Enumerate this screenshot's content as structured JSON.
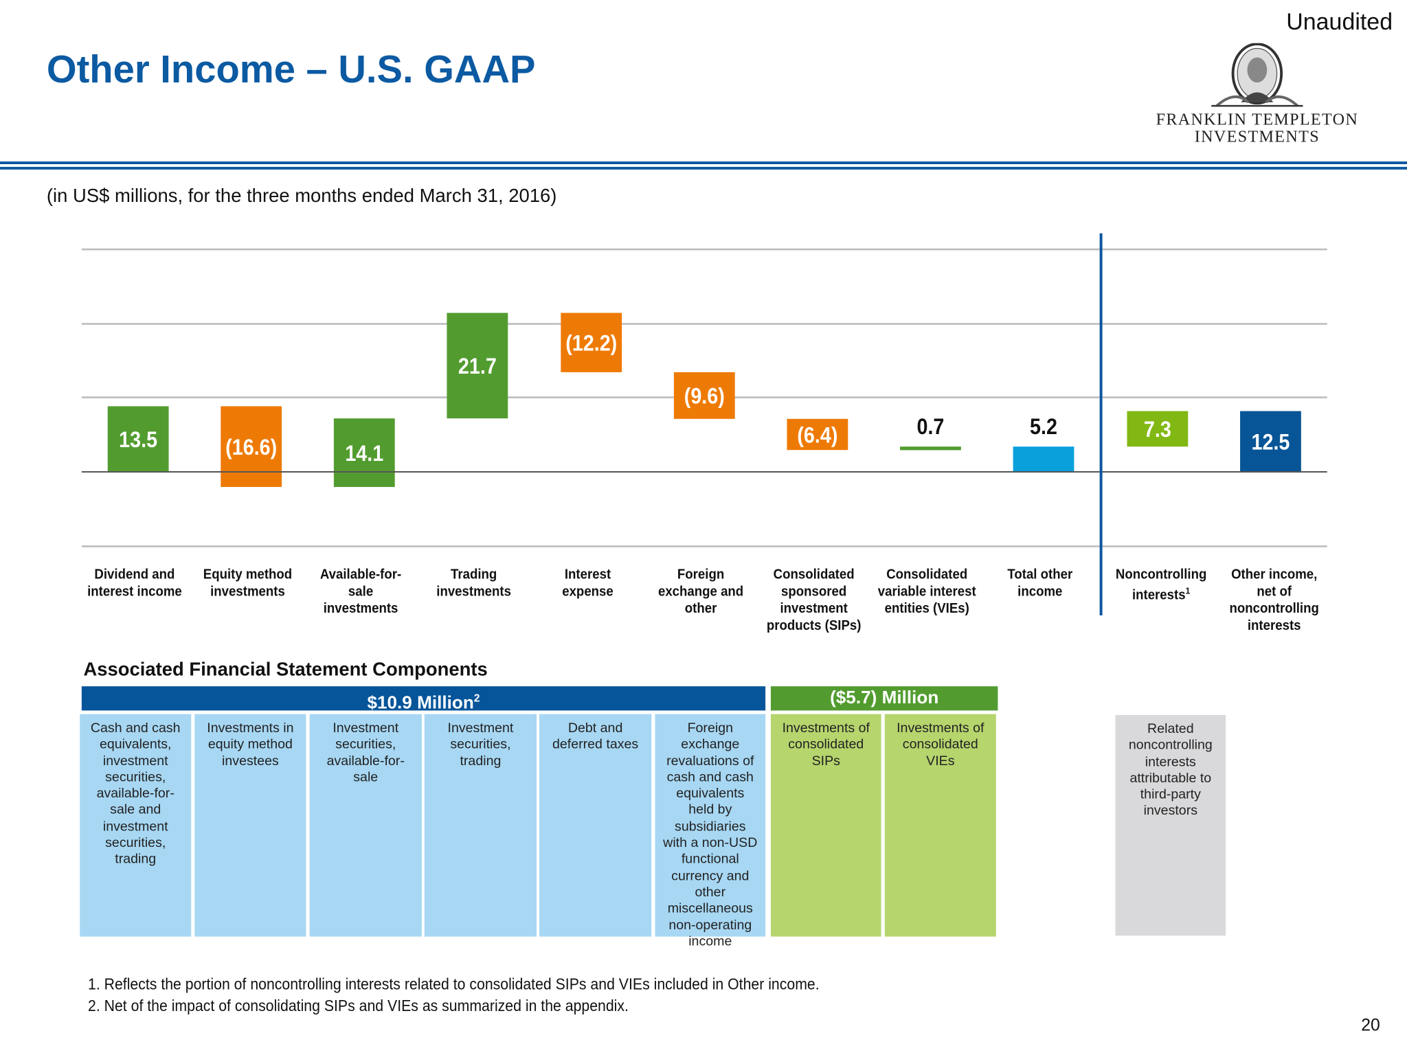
{
  "header": {
    "title": "Other Income – U.S. GAAP",
    "status": "Unaudited",
    "logo_text_line1": "FRANKLIN TEMPLETON",
    "logo_text_line2": "INVESTMENTS"
  },
  "subtitle": "(in US$ millions, for the three months ended March 31, 2016)",
  "chart_data": {
    "type": "waterfall",
    "categories": [
      "Dividend and interest income",
      "Equity method investments",
      "Available-for-sale investments",
      "Trading investments",
      "Interest expense",
      "Foreign exchange and other",
      "Consolidated sponsored investment products (SIPs)",
      "Consolidated variable interest entities (VIEs)",
      "Total other income",
      "Noncontrolling interests",
      "Other income, net of noncontrolling interests"
    ],
    "values": [
      13.5,
      -16.6,
      14.1,
      21.7,
      -12.2,
      -9.6,
      -6.4,
      0.7,
      5.2,
      7.3,
      12.5
    ],
    "data_labels": [
      "13.5",
      "(16.6)",
      "14.1",
      "21.7",
      "(12.2)",
      "(9.6)",
      "(6.4)",
      "0.7",
      "5.2",
      "7.3",
      "12.5"
    ],
    "kinds": [
      "delta",
      "delta",
      "delta",
      "delta",
      "delta",
      "delta",
      "delta",
      "delta",
      "total",
      "delta",
      "total"
    ],
    "colors": {
      "positive": "#529c2f",
      "negative": "#ee7a06",
      "total": "#0aa0dc",
      "noncontrolling": "#82b813",
      "net_total": "#075596"
    },
    "grid": true
  },
  "category_labels": [
    [
      "Dividend and",
      "interest income"
    ],
    [
      "Equity method",
      "investments"
    ],
    [
      "Available-for-",
      "sale",
      "investments"
    ],
    [
      "Trading",
      "investments"
    ],
    [
      "Interest",
      "expense"
    ],
    [
      "Foreign",
      "exchange and",
      "other"
    ],
    [
      "Consolidated",
      "sponsored",
      "investment",
      "products (SIPs)"
    ],
    [
      "Consolidated",
      "variable interest",
      "entities (VIEs)"
    ],
    [
      "Total other",
      "income"
    ],
    [
      "Noncontrolling",
      "interests"
    ],
    [
      "Other income,",
      "net of",
      "noncontrolling",
      "interests"
    ]
  ],
  "noncontrolling_sup": "1",
  "components": {
    "title": "Associated Financial Statement Components",
    "group1": {
      "label": "$10.9 Million",
      "sup": "2"
    },
    "group2": {
      "label": "($5.7) Million"
    },
    "cells": [
      "Cash and cash equivalents, investment securities, available-for-sale and investment securities, trading",
      "Investments in equity method investees",
      "Investment securities, available-for-sale",
      "Investment securities, trading",
      "Debt and deferred taxes",
      "Foreign exchange revaluations of cash and cash equivalents held by subsidiaries with a non-USD functional currency and other miscellaneous non-operating income",
      "Investments of consolidated SIPs",
      "Investments of consolidated VIEs"
    ],
    "related": "Related noncontrolling interests attributable to third-party investors"
  },
  "footnotes": [
    "1.  Reflects the portion of noncontrolling interests related to consolidated SIPs and VIEs included in Other income.",
    "2.  Net of the impact of consolidating SIPs and VIEs as summarized in the appendix."
  ],
  "page_number": "20"
}
